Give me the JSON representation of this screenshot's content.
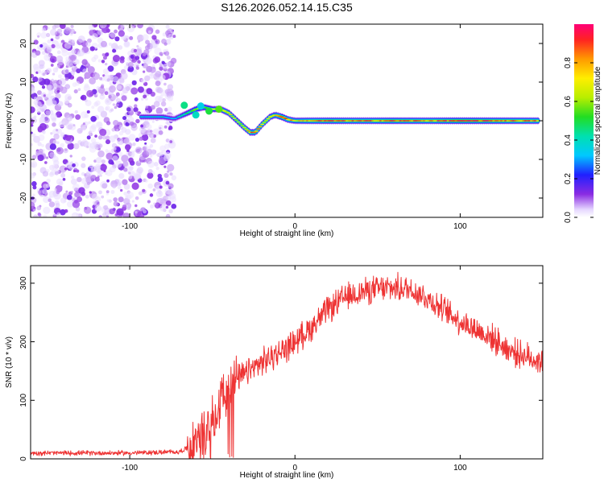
{
  "title": "S126.2026.052.14.15.C35",
  "colors": {
    "snr_line": "#ee3333",
    "axis": "#000000",
    "background": "#ffffff",
    "scatter_base": "#7a3cf0"
  },
  "chart_data": [
    {
      "type": "heatmap",
      "xlabel": "Height of straight line (km)",
      "ylabel": "Frequency (Hz)",
      "xlim": [
        -160,
        150
      ],
      "ylim": [
        -25,
        25
      ],
      "xticks": [
        -100,
        0,
        100
      ],
      "yticks": [
        -20,
        -10,
        0,
        10,
        20
      ],
      "grid": false,
      "noise_region_x": [
        -160,
        -73
      ],
      "ridge": {
        "x": [
          -93,
          -80,
          -73,
          -65,
          -60,
          -55,
          -50,
          -45,
          -40,
          -35,
          -30,
          -27,
          -24,
          -20,
          -15,
          -12,
          -8,
          -4,
          0,
          10,
          20,
          40,
          60,
          80,
          100,
          120,
          148
        ],
        "freq_hz": [
          1,
          1,
          0.5,
          2,
          3,
          3.5,
          3,
          3,
          2,
          0,
          -2,
          -3,
          -3,
          -1,
          1,
          1.5,
          1,
          0.3,
          0,
          0,
          0,
          0,
          0,
          0,
          0,
          0,
          0
        ],
        "peak_amplitude": [
          0.3,
          0.3,
          0.25,
          0.4,
          0.5,
          0.5,
          0.5,
          0.6,
          0.6,
          0.5,
          0.6,
          0.7,
          0.7,
          0.6,
          0.6,
          0.6,
          0.8,
          0.7,
          0.6,
          0.7,
          0.75,
          0.7,
          0.75,
          0.7,
          0.8,
          0.75,
          0.7
        ]
      },
      "colorbar": {
        "label": "Normalized spectral amplitude",
        "range": [
          0,
          1
        ],
        "ticks": [
          0.0,
          0.2,
          0.4,
          0.6,
          0.8
        ]
      }
    },
    {
      "type": "line",
      "name": "SNR",
      "xlabel": "Height of straight line (km)",
      "ylabel": "SNR (10 * v/v)",
      "xlim": [
        -160,
        150
      ],
      "ylim": [
        0,
        330
      ],
      "xticks": [
        -100,
        0,
        100
      ],
      "yticks": [
        0,
        100,
        200,
        300
      ],
      "grid": false,
      "anchors_x": [
        -160,
        -100,
        -70,
        -60,
        -50,
        -45,
        -40,
        -35,
        -30,
        -20,
        -10,
        0,
        10,
        20,
        30,
        40,
        50,
        60,
        70,
        80,
        90,
        100,
        110,
        120,
        130,
        140,
        150
      ],
      "anchors_y": [
        10,
        10,
        12,
        25,
        70,
        100,
        120,
        135,
        145,
        165,
        180,
        200,
        225,
        255,
        275,
        285,
        290,
        292,
        290,
        275,
        255,
        235,
        220,
        205,
        185,
        175,
        165
      ]
    }
  ]
}
